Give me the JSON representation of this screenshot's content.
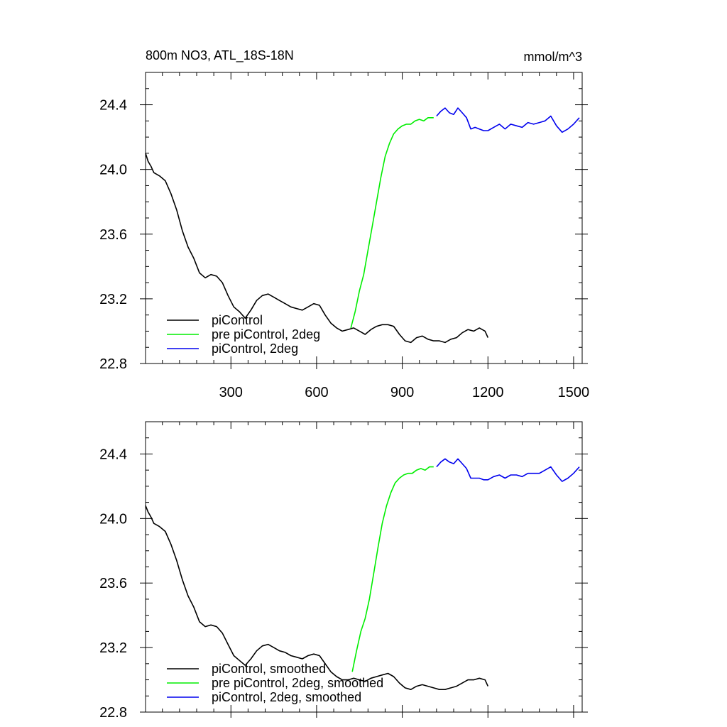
{
  "figure": {
    "title": "800m NO3, ATL_18S-18N",
    "units": "mmol/m^3"
  },
  "chart_data": [
    {
      "type": "line",
      "xlim": [
        1,
        1530
      ],
      "ylim": [
        22.8,
        24.6
      ],
      "x_ticks": [
        300,
        600,
        900,
        1200,
        1500
      ],
      "x_tick_labels": [
        "300",
        "600",
        "900",
        "1200",
        "1500"
      ],
      "y_ticks": [
        22.8,
        23.2,
        23.6,
        24.0,
        24.4
      ],
      "y_tick_labels": [
        "22.8",
        "23.2",
        "23.6",
        "24.0",
        "24.4"
      ],
      "grid": false,
      "legend_position": "bottom-left",
      "series": [
        {
          "name": "piControl",
          "color": "#000000",
          "x": [
            1,
            10,
            20,
            30,
            50,
            70,
            90,
            110,
            130,
            150,
            170,
            190,
            210,
            230,
            250,
            270,
            290,
            310,
            330,
            350,
            370,
            390,
            410,
            430,
            450,
            470,
            490,
            510,
            530,
            550,
            570,
            590,
            610,
            630,
            650,
            670,
            690,
            710,
            730,
            750,
            770,
            790,
            810,
            830,
            850,
            870,
            890,
            910,
            930,
            950,
            970,
            990,
            1010,
            1030,
            1050,
            1070,
            1090,
            1110,
            1130,
            1150,
            1170,
            1190,
            1200
          ],
          "values": [
            24.1,
            24.05,
            24.02,
            23.98,
            23.96,
            23.93,
            23.85,
            23.75,
            23.62,
            23.52,
            23.45,
            23.36,
            23.33,
            23.35,
            23.34,
            23.3,
            23.22,
            23.15,
            23.12,
            23.08,
            23.13,
            23.19,
            23.22,
            23.23,
            23.21,
            23.19,
            23.17,
            23.15,
            23.14,
            23.13,
            23.15,
            23.17,
            23.16,
            23.1,
            23.05,
            23.02,
            23.0,
            23.01,
            23.02,
            23.0,
            22.98,
            23.01,
            23.03,
            23.04,
            23.04,
            23.03,
            22.98,
            22.94,
            22.93,
            22.96,
            22.97,
            22.95,
            22.94,
            22.94,
            22.93,
            22.95,
            22.96,
            22.99,
            23.01,
            23.0,
            23.02,
            23.0,
            22.96
          ]
        },
        {
          "name": "pre piControl, 2deg",
          "color": "#00ee00",
          "x": [
            720,
            735,
            750,
            765,
            780,
            795,
            810,
            825,
            840,
            855,
            870,
            885,
            900,
            915,
            930,
            945,
            960,
            975,
            990,
            1010
          ],
          "values": [
            23.02,
            23.12,
            23.25,
            23.35,
            23.5,
            23.65,
            23.8,
            23.95,
            24.08,
            24.16,
            24.22,
            24.25,
            24.27,
            24.28,
            24.28,
            24.3,
            24.31,
            24.3,
            24.32,
            24.32
          ]
        },
        {
          "name": "piControl, 2deg",
          "color": "#0000ee",
          "x": [
            1020,
            1035,
            1050,
            1065,
            1080,
            1095,
            1110,
            1125,
            1140,
            1155,
            1170,
            1185,
            1200,
            1220,
            1240,
            1260,
            1280,
            1300,
            1320,
            1340,
            1360,
            1380,
            1400,
            1420,
            1440,
            1460,
            1480,
            1500,
            1520
          ],
          "values": [
            24.33,
            24.36,
            24.38,
            24.35,
            24.34,
            24.38,
            24.35,
            24.32,
            24.25,
            24.26,
            24.25,
            24.24,
            24.24,
            24.26,
            24.28,
            24.25,
            24.28,
            24.27,
            24.26,
            24.29,
            24.28,
            24.29,
            24.3,
            24.33,
            24.27,
            24.23,
            24.25,
            24.28,
            24.32
          ]
        }
      ]
    },
    {
      "type": "line",
      "xlim": [
        1,
        1530
      ],
      "ylim": [
        22.8,
        24.6
      ],
      "x_ticks": [
        300,
        600,
        900,
        1200,
        1500
      ],
      "y_ticks": [
        22.8,
        23.2,
        23.6,
        24.0,
        24.4
      ],
      "y_tick_labels": [
        "22.8",
        "23.2",
        "23.6",
        "24.0",
        "24.4"
      ],
      "grid": false,
      "legend_position": "bottom-left",
      "series": [
        {
          "name": "piControl, smoothed",
          "color": "#000000",
          "x": [
            1,
            10,
            20,
            30,
            50,
            70,
            90,
            110,
            130,
            150,
            170,
            190,
            210,
            230,
            250,
            270,
            290,
            310,
            330,
            350,
            370,
            390,
            410,
            430,
            450,
            470,
            490,
            510,
            530,
            550,
            570,
            590,
            610,
            630,
            650,
            670,
            690,
            710,
            730,
            750,
            770,
            790,
            810,
            830,
            850,
            870,
            890,
            910,
            930,
            950,
            970,
            990,
            1010,
            1030,
            1050,
            1070,
            1090,
            1110,
            1130,
            1150,
            1170,
            1190,
            1200
          ],
          "values": [
            24.08,
            24.04,
            24.01,
            23.97,
            23.95,
            23.92,
            23.84,
            23.74,
            23.62,
            23.52,
            23.45,
            23.36,
            23.33,
            23.34,
            23.33,
            23.29,
            23.22,
            23.15,
            23.12,
            23.09,
            23.13,
            23.18,
            23.21,
            23.22,
            23.2,
            23.18,
            23.17,
            23.15,
            23.14,
            23.13,
            23.15,
            23.16,
            23.15,
            23.1,
            23.05,
            23.02,
            23.0,
            23.0,
            23.01,
            23.0,
            22.99,
            23.01,
            23.02,
            23.03,
            23.04,
            23.02,
            22.98,
            22.95,
            22.94,
            22.96,
            22.97,
            22.96,
            22.95,
            22.94,
            22.94,
            22.95,
            22.96,
            22.98,
            23.0,
            23.0,
            23.01,
            23.0,
            22.96
          ]
        },
        {
          "name": "pre piControl, 2deg, smoothed",
          "color": "#00ee00",
          "x": [
            725,
            740,
            755,
            770,
            785,
            800,
            815,
            830,
            845,
            860,
            875,
            890,
            905,
            920,
            935,
            950,
            965,
            980,
            995,
            1010
          ],
          "values": [
            23.05,
            23.18,
            23.3,
            23.38,
            23.5,
            23.66,
            23.82,
            23.97,
            24.08,
            24.16,
            24.22,
            24.25,
            24.27,
            24.28,
            24.28,
            24.3,
            24.31,
            24.3,
            24.32,
            24.32
          ]
        },
        {
          "name": "piControl, 2deg, smoothed",
          "color": "#0000ee",
          "x": [
            1020,
            1035,
            1050,
            1065,
            1080,
            1095,
            1110,
            1125,
            1140,
            1155,
            1170,
            1185,
            1200,
            1220,
            1240,
            1260,
            1280,
            1300,
            1320,
            1340,
            1360,
            1380,
            1400,
            1420,
            1440,
            1460,
            1480,
            1500,
            1520
          ],
          "values": [
            24.32,
            24.35,
            24.37,
            24.35,
            24.34,
            24.37,
            24.34,
            24.31,
            24.25,
            24.25,
            24.25,
            24.24,
            24.24,
            24.26,
            24.27,
            24.25,
            24.27,
            24.27,
            24.26,
            24.28,
            24.28,
            24.28,
            24.3,
            24.32,
            24.27,
            24.23,
            24.25,
            24.28,
            24.32
          ]
        }
      ]
    }
  ]
}
